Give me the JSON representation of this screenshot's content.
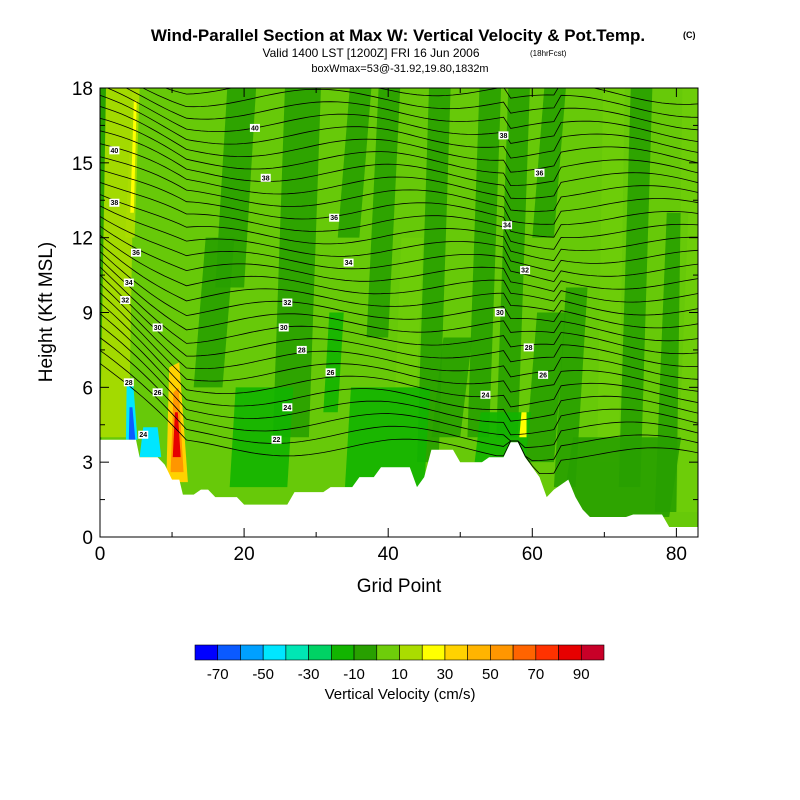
{
  "chart_data": {
    "type": "heatmap",
    "title": "Wind-Parallel Section at Max W: Vertical Velocity & Pot.Temp.",
    "title_mark": "(C)",
    "subtitle": "Valid 1400 LST [1200Z] FRI 16 Jun 2006",
    "subtitle_note": "(18hrFcst)",
    "info_line": "boxWmax=53@-31.92,19.80,1832m",
    "xlabel": "Grid Point",
    "ylabel": "Height (Kft MSL)",
    "xlim": [
      0,
      83
    ],
    "ylim": [
      0,
      18
    ],
    "x_ticks": [
      "0",
      "20",
      "40",
      "60",
      "80"
    ],
    "y_ticks": [
      "0",
      "3",
      "6",
      "9",
      "12",
      "15",
      "18"
    ],
    "colorbar": {
      "label": "Vertical Velocity (cm/s)",
      "tick_labels": [
        "-70",
        "-50",
        "-30",
        "-10",
        "10",
        "30",
        "50",
        "70",
        "90"
      ],
      "colors": [
        "#0000ff",
        "#0a5aff",
        "#00a0ff",
        "#00e6ff",
        "#00e6b4",
        "#00d264",
        "#12b400",
        "#28a000",
        "#6ecd0a",
        "#aadc00",
        "#ffff00",
        "#ffd200",
        "#ffb400",
        "#ff9600",
        "#ff6400",
        "#ff3200",
        "#e60000",
        "#c80028"
      ]
    },
    "terrain": [
      [
        0,
        3.9
      ],
      [
        4,
        3.9
      ],
      [
        5,
        3.9
      ],
      [
        5.5,
        3.2
      ],
      [
        8,
        3.2
      ],
      [
        9,
        2.9
      ],
      [
        10,
        2.3
      ],
      [
        11,
        2.3
      ],
      [
        11.5,
        1.7
      ],
      [
        13,
        1.7
      ],
      [
        14,
        1.9
      ],
      [
        15,
        1.9
      ],
      [
        16,
        1.6
      ],
      [
        19,
        1.6
      ],
      [
        20,
        1.3
      ],
      [
        26,
        1.3
      ],
      [
        27,
        1.8
      ],
      [
        31,
        1.8
      ],
      [
        32,
        2.0
      ],
      [
        35,
        2.0
      ],
      [
        36,
        2.4
      ],
      [
        38,
        2.4
      ],
      [
        39,
        2.8
      ],
      [
        43,
        2.8
      ],
      [
        44,
        2.0
      ],
      [
        45,
        2.4
      ],
      [
        46,
        3.5
      ],
      [
        49,
        3.5
      ],
      [
        50,
        3.0
      ],
      [
        53,
        3.0
      ],
      [
        54,
        3.2
      ],
      [
        56,
        3.2
      ],
      [
        57,
        3.8
      ],
      [
        58,
        3.8
      ],
      [
        59,
        3.2
      ],
      [
        60,
        2.8
      ],
      [
        61,
        2.4
      ],
      [
        62,
        1.6
      ],
      [
        63,
        1.9
      ],
      [
        65,
        2.3
      ],
      [
        66,
        1.6
      ],
      [
        67,
        1.1
      ],
      [
        68,
        0.8
      ],
      [
        73,
        0.8
      ],
      [
        74,
        0.9
      ],
      [
        78,
        0.9
      ],
      [
        79,
        0.4
      ],
      [
        83,
        0.4
      ]
    ],
    "contour_labels": [
      {
        "x": 2,
        "y": 15.5,
        "text": "40"
      },
      {
        "x": 21.5,
        "y": 16.4,
        "text": "40"
      },
      {
        "x": 23,
        "y": 14.4,
        "text": "38"
      },
      {
        "x": 2,
        "y": 13.4,
        "text": "38"
      },
      {
        "x": 32.5,
        "y": 12.8,
        "text": "36"
      },
      {
        "x": 5,
        "y": 11.4,
        "text": "36"
      },
      {
        "x": 34.5,
        "y": 11.0,
        "text": "34"
      },
      {
        "x": 4,
        "y": 10.2,
        "text": "34"
      },
      {
        "x": 3.5,
        "y": 9.5,
        "text": "32"
      },
      {
        "x": 26,
        "y": 9.4,
        "text": "32"
      },
      {
        "x": 8,
        "y": 8.4,
        "text": "30"
      },
      {
        "x": 25.5,
        "y": 8.4,
        "text": "30"
      },
      {
        "x": 28,
        "y": 7.5,
        "text": "28"
      },
      {
        "x": 32,
        "y": 6.6,
        "text": "26"
      },
      {
        "x": 26,
        "y": 5.2,
        "text": "24"
      },
      {
        "x": 24.5,
        "y": 3.9,
        "text": "22"
      },
      {
        "x": 4,
        "y": 6.2,
        "text": "28"
      },
      {
        "x": 8,
        "y": 5.8,
        "text": "26"
      },
      {
        "x": 6,
        "y": 4.1,
        "text": "24"
      },
      {
        "x": 56,
        "y": 16.1,
        "text": "38"
      },
      {
        "x": 61,
        "y": 14.6,
        "text": "36"
      },
      {
        "x": 56.5,
        "y": 12.5,
        "text": "34"
      },
      {
        "x": 59,
        "y": 10.7,
        "text": "32"
      },
      {
        "x": 55.5,
        "y": 9.0,
        "text": "30"
      },
      {
        "x": 59.5,
        "y": 7.6,
        "text": "28"
      },
      {
        "x": 61.5,
        "y": 6.5,
        "text": "26"
      },
      {
        "x": 53.5,
        "y": 5.7,
        "text": "24"
      }
    ]
  }
}
